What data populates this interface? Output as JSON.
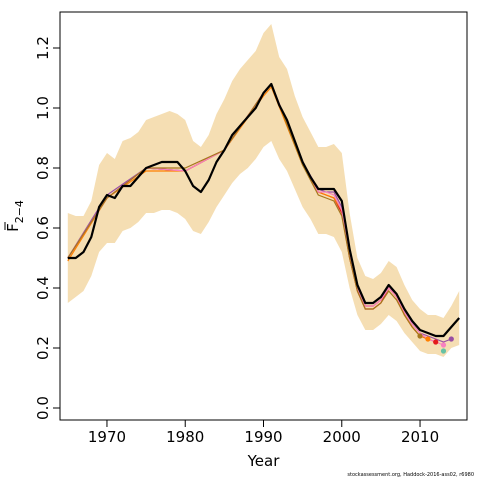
{
  "chart_data": {
    "type": "line",
    "xlabel": "Year",
    "ylabel": "F",
    "ylabel_subscript": "2−4",
    "xlim": [
      1964,
      2016
    ],
    "ylim": [
      -0.04,
      1.32
    ],
    "x_ticks": [
      1970,
      1980,
      1990,
      2000,
      2010
    ],
    "y_ticks": [
      0.0,
      0.2,
      0.4,
      0.6,
      0.8,
      1.0,
      1.2
    ],
    "y_tick_labels": [
      "0.0",
      "0.2",
      "0.4",
      "0.6",
      "0.8",
      "1.0",
      "1.2"
    ],
    "band_color": "#f5deb3",
    "grid": false,
    "band": {
      "x": [
        1965,
        1966,
        1967,
        1968,
        1969,
        1970,
        1971,
        1972,
        1973,
        1974,
        1975,
        1976,
        1977,
        1978,
        1979,
        1980,
        1981,
        1982,
        1983,
        1984,
        1985,
        1986,
        1987,
        1988,
        1989,
        1990,
        1991,
        1992,
        1993,
        1994,
        1995,
        1996,
        1997,
        1998,
        1999,
        2000,
        2001,
        2002,
        2003,
        2004,
        2005,
        2006,
        2007,
        2008,
        2009,
        2010,
        2011,
        2012,
        2013,
        2014,
        2015
      ],
      "lower": [
        0.35,
        0.37,
        0.39,
        0.44,
        0.52,
        0.55,
        0.55,
        0.59,
        0.6,
        0.62,
        0.65,
        0.65,
        0.66,
        0.66,
        0.65,
        0.63,
        0.59,
        0.58,
        0.62,
        0.67,
        0.71,
        0.75,
        0.78,
        0.8,
        0.83,
        0.87,
        0.89,
        0.83,
        0.79,
        0.73,
        0.67,
        0.63,
        0.58,
        0.58,
        0.57,
        0.52,
        0.4,
        0.31,
        0.26,
        0.26,
        0.28,
        0.31,
        0.29,
        0.25,
        0.22,
        0.19,
        0.18,
        0.18,
        0.17,
        0.2,
        0.21
      ],
      "upper": [
        0.65,
        0.64,
        0.64,
        0.69,
        0.81,
        0.85,
        0.83,
        0.89,
        0.9,
        0.92,
        0.96,
        0.97,
        0.98,
        0.99,
        0.98,
        0.96,
        0.89,
        0.87,
        0.91,
        0.98,
        1.03,
        1.09,
        1.13,
        1.16,
        1.19,
        1.25,
        1.28,
        1.17,
        1.13,
        1.04,
        0.97,
        0.92,
        0.87,
        0.87,
        0.88,
        0.85,
        0.65,
        0.5,
        0.44,
        0.43,
        0.45,
        0.49,
        0.47,
        0.41,
        0.36,
        0.33,
        0.31,
        0.31,
        0.3,
        0.34,
        0.39
      ]
    },
    "main_series": {
      "color": "#000000",
      "x": [
        1965,
        1966,
        1967,
        1968,
        1969,
        1970,
        1971,
        1972,
        1973,
        1974,
        1975,
        1976,
        1977,
        1978,
        1979,
        1980,
        1981,
        1982,
        1983,
        1984,
        1985,
        1986,
        1987,
        1988,
        1989,
        1990,
        1991,
        1992,
        1993,
        1994,
        1995,
        1996,
        1997,
        1998,
        1999,
        2000,
        2001,
        2002,
        2003,
        2004,
        2005,
        2006,
        2007,
        2008,
        2009,
        2010,
        2011,
        2012,
        2013,
        2014,
        2015
      ],
      "y": [
        0.5,
        0.5,
        0.52,
        0.57,
        0.67,
        0.71,
        0.7,
        0.74,
        0.74,
        0.77,
        0.8,
        0.81,
        0.82,
        0.82,
        0.82,
        0.79,
        0.74,
        0.72,
        0.76,
        0.82,
        0.86,
        0.91,
        0.94,
        0.97,
        1.0,
        1.05,
        1.08,
        1.01,
        0.96,
        0.89,
        0.82,
        0.77,
        0.73,
        0.73,
        0.73,
        0.69,
        0.53,
        0.41,
        0.35,
        0.35,
        0.37,
        0.41,
        0.38,
        0.33,
        0.29,
        0.26,
        0.25,
        0.24,
        0.24,
        0.27,
        0.3
      ]
    },
    "retro_series": [
      {
        "color": "#e41a1c",
        "x": [
          1965,
          1970,
          1975,
          1980,
          1985,
          1990,
          1991,
          1995,
          1997,
          1998,
          1999,
          2000,
          2001,
          2002,
          2003,
          2004,
          2005,
          2006,
          2007,
          2008,
          2009,
          2010,
          2011,
          2012
        ],
        "y": [
          0.5,
          0.7,
          0.8,
          0.79,
          0.86,
          1.05,
          1.08,
          0.82,
          0.72,
          0.71,
          0.7,
          0.65,
          0.5,
          0.39,
          0.33,
          0.33,
          0.35,
          0.4,
          0.37,
          0.31,
          0.27,
          0.24,
          0.23,
          0.22
        ]
      },
      {
        "color": "#984ea3",
        "x": [
          1965,
          1970,
          1975,
          1980,
          1985,
          1990,
          1991,
          1995,
          1997,
          1998,
          1999,
          2000,
          2001,
          2002,
          2003,
          2004,
          2005,
          2006,
          2007,
          2008,
          2009,
          2010,
          2011,
          2012,
          2013,
          2014
        ],
        "y": [
          0.5,
          0.71,
          0.8,
          0.79,
          0.86,
          1.05,
          1.08,
          0.82,
          0.73,
          0.72,
          0.72,
          0.67,
          0.52,
          0.4,
          0.34,
          0.34,
          0.36,
          0.4,
          0.38,
          0.32,
          0.28,
          0.25,
          0.24,
          0.23,
          0.22,
          0.23
        ]
      },
      {
        "color": "#ff7f00",
        "x": [
          1965,
          1970,
          1975,
          1980,
          1985,
          1990,
          1991,
          1995,
          1997,
          1998,
          1999,
          2000,
          2001,
          2002,
          2003,
          2004,
          2005,
          2006,
          2007,
          2008,
          2009,
          2010,
          2011
        ],
        "y": [
          0.49,
          0.7,
          0.79,
          0.79,
          0.86,
          1.04,
          1.07,
          0.81,
          0.72,
          0.71,
          0.7,
          0.66,
          0.51,
          0.4,
          0.34,
          0.34,
          0.36,
          0.4,
          0.37,
          0.31,
          0.27,
          0.24,
          0.23
        ]
      },
      {
        "color": "#f781bf",
        "x": [
          1965,
          1970,
          1975,
          1980,
          1985,
          1990,
          1991,
          1995,
          1997,
          1998,
          1999,
          2000,
          2001,
          2002,
          2003,
          2004,
          2005,
          2006,
          2007,
          2008,
          2009,
          2010,
          2011,
          2012,
          2013
        ],
        "y": [
          0.5,
          0.7,
          0.8,
          0.79,
          0.86,
          1.05,
          1.08,
          0.82,
          0.72,
          0.72,
          0.71,
          0.66,
          0.51,
          0.4,
          0.34,
          0.34,
          0.36,
          0.4,
          0.37,
          0.32,
          0.28,
          0.25,
          0.23,
          0.22,
          0.21
        ]
      },
      {
        "color": "#a6761d",
        "x": [
          1965,
          1970,
          1975,
          1980,
          1985,
          1990,
          1991,
          1995,
          1997,
          1998,
          1999,
          2000,
          2001,
          2002,
          2003,
          2004,
          2005,
          2006,
          2007,
          2008,
          2009,
          2010
        ],
        "y": [
          0.5,
          0.7,
          0.8,
          0.8,
          0.86,
          1.05,
          1.08,
          0.81,
          0.71,
          0.7,
          0.69,
          0.64,
          0.5,
          0.39,
          0.33,
          0.33,
          0.35,
          0.39,
          0.36,
          0.31,
          0.27,
          0.24
        ]
      }
    ],
    "end_points": [
      {
        "x": 2010,
        "y": 0.24,
        "color": "#a6761d"
      },
      {
        "x": 2011,
        "y": 0.23,
        "color": "#ff7f00"
      },
      {
        "x": 2012,
        "y": 0.22,
        "color": "#e41a1c"
      },
      {
        "x": 2013,
        "y": 0.19,
        "color": "#66c2a5"
      },
      {
        "x": 2013,
        "y": 0.21,
        "color": "#f781bf"
      },
      {
        "x": 2014,
        "y": 0.23,
        "color": "#984ea3"
      }
    ]
  },
  "footer_text": "stockassessment.org, Haddock-2016-ass02, r6980"
}
